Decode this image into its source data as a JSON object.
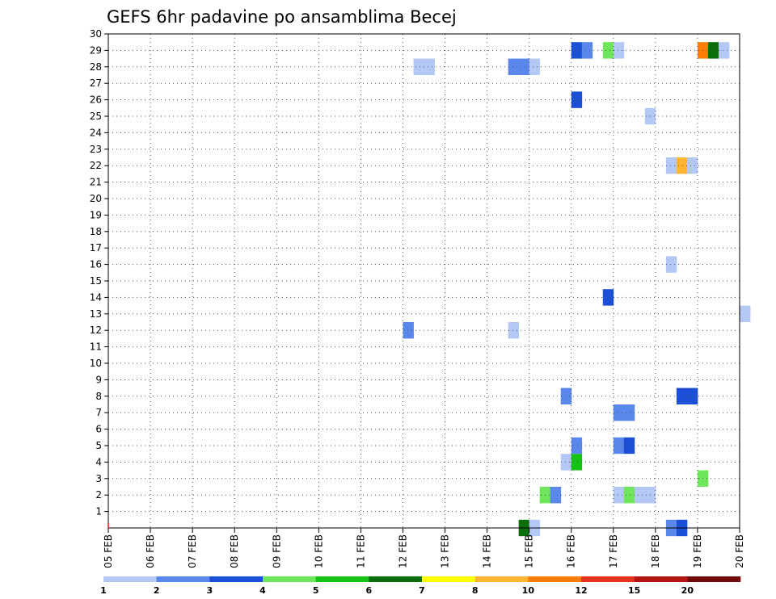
{
  "chart_data": {
    "type": "heatmap",
    "title": "GEFS 6hr padavine po ansamblima Becej",
    "x_tick_labels": [
      "05 FEB",
      "06 FEB",
      "07 FEB",
      "08 FEB",
      "09 FEB",
      "10 FEB",
      "11 FEB",
      "12 FEB",
      "13 FEB",
      "14 FEB",
      "15 FEB",
      "16 FEB",
      "17 FEB",
      "18 FEB",
      "19 FEB",
      "20 FEB"
    ],
    "x_unit": "day",
    "x_range": [
      0,
      15
    ],
    "y_tick_labels": [
      "1",
      "2",
      "3",
      "4",
      "5",
      "6",
      "7",
      "8",
      "9",
      "10",
      "11",
      "12",
      "13",
      "14",
      "15",
      "16",
      "17",
      "18",
      "19",
      "20",
      "21",
      "22",
      "23",
      "24",
      "25",
      "26",
      "27",
      "28",
      "29",
      "30"
    ],
    "y_range": [
      0,
      30
    ],
    "grid": true,
    "colorbar": {
      "labels": [
        "1",
        "2",
        "3",
        "4",
        "5",
        "6",
        "7",
        "8",
        "10",
        "12",
        "15",
        "20"
      ],
      "colors": [
        "#b4c8f5",
        "#5a87eb",
        "#1a4fd6",
        "#6ee65a",
        "#14c314",
        "#0a6e0a",
        "#ffff00",
        "#ffb432",
        "#ff7d00",
        "#e6321e",
        "#b41414",
        "#730a0a"
      ]
    },
    "cells": [
      {
        "x": 9.75,
        "member": 0,
        "color": "#0a6e0a"
      },
      {
        "x": 10.0,
        "member": 0,
        "color": "#b4c8f5"
      },
      {
        "x": 13.25,
        "member": 0,
        "color": "#5a87eb"
      },
      {
        "x": 13.5,
        "member": 0,
        "color": "#1a4fd6"
      },
      {
        "x": 10.25,
        "member": 2,
        "color": "#6ee65a"
      },
      {
        "x": 10.5,
        "member": 2,
        "color": "#5a87eb"
      },
      {
        "x": 12.0,
        "member": 2,
        "color": "#b4c8f5"
      },
      {
        "x": 12.25,
        "member": 2,
        "color": "#6ee65a"
      },
      {
        "x": 12.5,
        "member": 2,
        "color": "#b4c8f5"
      },
      {
        "x": 12.75,
        "member": 2,
        "color": "#b4c8f5"
      },
      {
        "x": 14.0,
        "member": 3,
        "color": "#6ee65a"
      },
      {
        "x": 10.75,
        "member": 4,
        "color": "#b4c8f5"
      },
      {
        "x": 11.0,
        "member": 4,
        "color": "#14c314"
      },
      {
        "x": 11.0,
        "member": 5,
        "color": "#5a87eb"
      },
      {
        "x": 12.0,
        "member": 5,
        "color": "#5a87eb"
      },
      {
        "x": 12.25,
        "member": 5,
        "color": "#1a4fd6"
      },
      {
        "x": 12.0,
        "member": 7,
        "color": "#5a87eb"
      },
      {
        "x": 12.25,
        "member": 7,
        "color": "#5a87eb"
      },
      {
        "x": 10.75,
        "member": 8,
        "color": "#5a87eb"
      },
      {
        "x": 13.5,
        "member": 8,
        "color": "#1a4fd6"
      },
      {
        "x": 13.75,
        "member": 8,
        "color": "#1a4fd6"
      },
      {
        "x": 7.0,
        "member": 12,
        "color": "#5a87eb"
      },
      {
        "x": 9.5,
        "member": 12,
        "color": "#b4c8f5"
      },
      {
        "x": 15.0,
        "member": 13,
        "color": "#b4c8f5"
      },
      {
        "x": 11.75,
        "member": 14,
        "color": "#1a4fd6"
      },
      {
        "x": 13.25,
        "member": 16,
        "color": "#b4c8f5"
      },
      {
        "x": 13.25,
        "member": 22,
        "color": "#b4c8f5"
      },
      {
        "x": 13.5,
        "member": 22,
        "color": "#ffb432"
      },
      {
        "x": 13.75,
        "member": 22,
        "color": "#b4c8f5"
      },
      {
        "x": 12.75,
        "member": 25,
        "color": "#b4c8f5"
      },
      {
        "x": 11.0,
        "member": 26,
        "color": "#1a4fd6"
      },
      {
        "x": 7.25,
        "member": 28,
        "color": "#b4c8f5"
      },
      {
        "x": 7.5,
        "member": 28,
        "color": "#b4c8f5"
      },
      {
        "x": 9.5,
        "member": 28,
        "color": "#5a87eb"
      },
      {
        "x": 9.75,
        "member": 28,
        "color": "#5a87eb"
      },
      {
        "x": 10.0,
        "member": 28,
        "color": "#b4c8f5"
      },
      {
        "x": 11.0,
        "member": 29,
        "color": "#1a4fd6"
      },
      {
        "x": 11.25,
        "member": 29,
        "color": "#5a87eb"
      },
      {
        "x": 11.75,
        "member": 29,
        "color": "#6ee65a"
      },
      {
        "x": 12.0,
        "member": 29,
        "color": "#b4c8f5"
      },
      {
        "x": 14.0,
        "member": 29,
        "color": "#ff7d00"
      },
      {
        "x": 14.25,
        "member": 29,
        "color": "#0a6e0a"
      },
      {
        "x": 14.5,
        "member": 29,
        "color": "#b4c8f5"
      }
    ]
  }
}
